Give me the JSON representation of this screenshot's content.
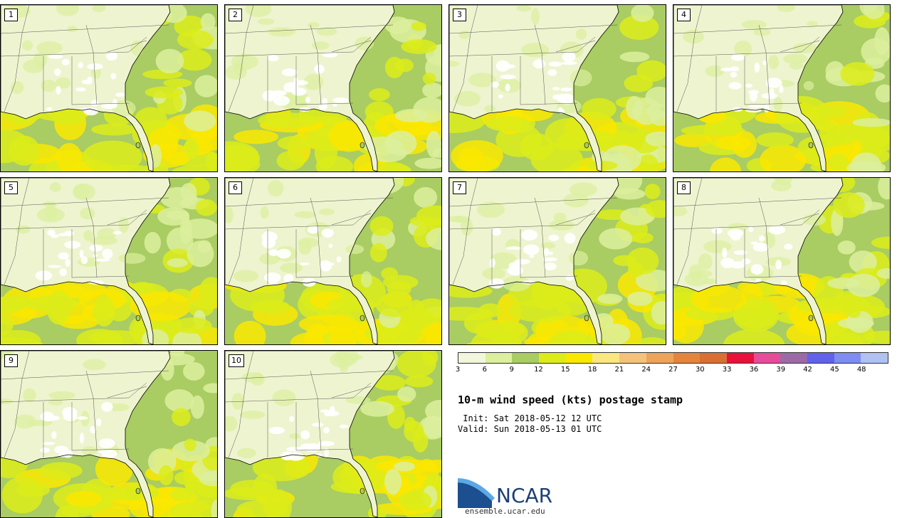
{
  "title": "10-m wind speed (kts) postage stamp",
  "init_line": " Init: Sat 2018-05-12 12 UTC",
  "valid_line": "Valid: Sun 2018-05-13 01 UTC",
  "logo": {
    "text": "NCAR",
    "url": "ensemble.ucar.edu"
  },
  "members": [
    "1",
    "2",
    "3",
    "4",
    "5",
    "6",
    "7",
    "8",
    "9",
    "10"
  ],
  "colorbar": {
    "colors": [
      "#f2f7dc",
      "#dcef9e",
      "#a9cc63",
      "#dcec1a",
      "#fae800",
      "#fbe780",
      "#f4c27a",
      "#eea35a",
      "#e5843c",
      "#d96f33",
      "#e8113c",
      "#e64c9a",
      "#9c6aa6",
      "#6161ec",
      "#7d8df2",
      "#b0c1f4"
    ],
    "ticks": [
      "3",
      "6",
      "9",
      "12",
      "15",
      "18",
      "21",
      "24",
      "27",
      "30",
      "33",
      "36",
      "39",
      "42",
      "45",
      "48"
    ]
  },
  "colors": {
    "land_light": "#eef4cf",
    "light_green": "#dcef9e",
    "mid_green": "#a9cc63",
    "yellow": "#fae800",
    "yellow_green": "#dcec1a",
    "white": "#ffffff",
    "ncar_blue": "#1c4f8f"
  }
}
